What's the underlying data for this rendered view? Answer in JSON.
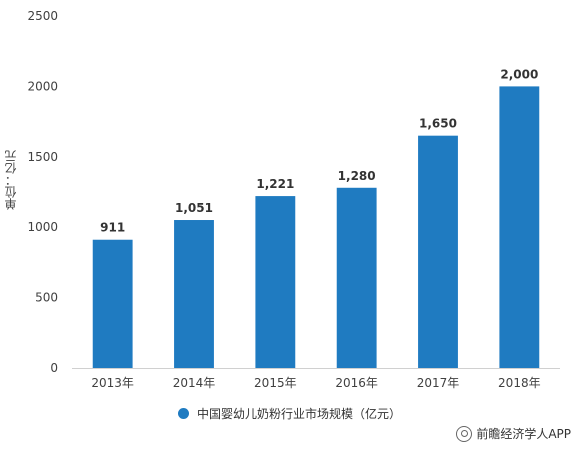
{
  "chart_data": {
    "type": "bar",
    "categories": [
      "2013年",
      "2014年",
      "2015年",
      "2016年",
      "2017年",
      "2018年"
    ],
    "values": [
      911,
      1051,
      1221,
      1280,
      1650,
      2000
    ],
    "value_labels": [
      "911",
      "1,051",
      "1,221",
      "1,280",
      "1,650",
      "2,000"
    ],
    "series": [
      {
        "name": "中国婴幼儿奶粉行业市场规模（亿元）",
        "values": [
          911,
          1051,
          1221,
          1280,
          1650,
          2000
        ]
      }
    ],
    "ylabel": "单位：亿元",
    "yticks": [
      0,
      500,
      1000,
      1500,
      2000,
      2500
    ],
    "ylim": [
      0,
      2500
    ],
    "grid": false,
    "legend_position": "bottom",
    "bar_color": "#1F7BC1"
  },
  "footer": {
    "brand": "前瞻经济学人APP"
  }
}
